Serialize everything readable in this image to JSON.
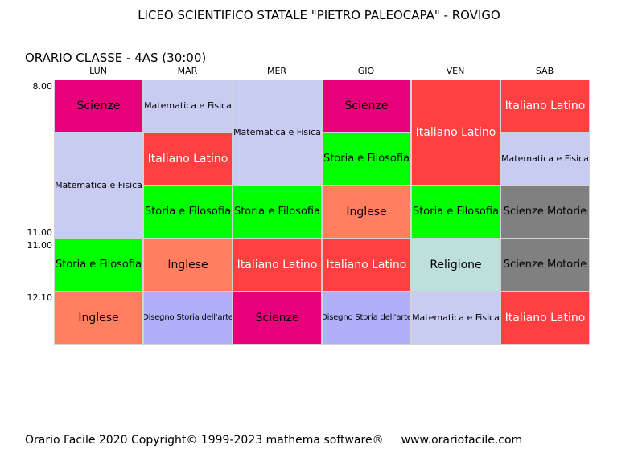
{
  "title": "LICEO SCIENTIFICO STATALE \"PIETRO PALEOCAPA\" - ROVIGO",
  "class_line": "ORARIO CLASSE   -   4AS  (30:00)",
  "days": [
    "LUN",
    "MAR",
    "MER",
    "GIO",
    "VEN",
    "SAB"
  ],
  "times": [
    "8.00",
    "11.00",
    "11.00",
    "12.10"
  ],
  "colors": {
    "scienze": "#e8007a",
    "matematica": "#c8ccf2",
    "italiano": "#ff4040",
    "storia": "#00ff00",
    "inglese": "#ff7f60",
    "religione": "#bde0dc",
    "motorie": "#808080",
    "disegno": "#b0b0f8"
  },
  "cells": [
    {
      "day": 0,
      "start": 0,
      "span": 1,
      "label": "Scienze",
      "color": "#e8007a",
      "text_color": "#000000",
      "size": "lg"
    },
    {
      "day": 0,
      "start": 1,
      "span": 2,
      "label": "Matematica e Fisica",
      "color": "#c8ccf2",
      "text_color": "#000000",
      "size": "sm"
    },
    {
      "day": 0,
      "start": 3,
      "span": 1,
      "label": "Storia e Filosofia",
      "color": "#00ff00",
      "text_color": "#000000",
      "size": "md"
    },
    {
      "day": 0,
      "start": 4,
      "span": 1,
      "label": "Inglese",
      "color": "#ff7f60",
      "text_color": "#000000",
      "size": "lg"
    },
    {
      "day": 1,
      "start": 0,
      "span": 1,
      "label": "Matematica e Fisica",
      "color": "#c8ccf2",
      "text_color": "#000000",
      "size": "sm"
    },
    {
      "day": 1,
      "start": 1,
      "span": 1,
      "label": "Italiano Latino",
      "color": "#ff4040",
      "text_color": "#ffffff",
      "size": "lg"
    },
    {
      "day": 1,
      "start": 2,
      "span": 1,
      "label": "Storia e Filosofia",
      "color": "#00ff00",
      "text_color": "#000000",
      "size": "md"
    },
    {
      "day": 1,
      "start": 3,
      "span": 1,
      "label": "Inglese",
      "color": "#ff7f60",
      "text_color": "#000000",
      "size": "lg"
    },
    {
      "day": 1,
      "start": 4,
      "span": 1,
      "label": "Disegno Storia dell'arte",
      "color": "#b0b0f8",
      "text_color": "#000000",
      "size": "xs"
    },
    {
      "day": 2,
      "start": 0,
      "span": 2,
      "label": "Matematica e Fisica",
      "color": "#c8ccf2",
      "text_color": "#000000",
      "size": "sm"
    },
    {
      "day": 2,
      "start": 2,
      "span": 1,
      "label": "Storia e Filosofia",
      "color": "#00ff00",
      "text_color": "#000000",
      "size": "md"
    },
    {
      "day": 2,
      "start": 3,
      "span": 1,
      "label": "Italiano Latino",
      "color": "#ff4040",
      "text_color": "#ffffff",
      "size": "lg"
    },
    {
      "day": 2,
      "start": 4,
      "span": 1,
      "label": "Scienze",
      "color": "#e8007a",
      "text_color": "#000000",
      "size": "lg"
    },
    {
      "day": 3,
      "start": 0,
      "span": 1,
      "label": "Scienze",
      "color": "#e8007a",
      "text_color": "#000000",
      "size": "lg"
    },
    {
      "day": 3,
      "start": 1,
      "span": 1,
      "label": "Storia e Filosofia",
      "color": "#00ff00",
      "text_color": "#000000",
      "size": "md"
    },
    {
      "day": 3,
      "start": 2,
      "span": 1,
      "label": "Inglese",
      "color": "#ff7f60",
      "text_color": "#000000",
      "size": "lg"
    },
    {
      "day": 3,
      "start": 3,
      "span": 1,
      "label": "Italiano Latino",
      "color": "#ff4040",
      "text_color": "#ffffff",
      "size": "lg"
    },
    {
      "day": 3,
      "start": 4,
      "span": 1,
      "label": "Disegno Storia dell'arte",
      "color": "#b0b0f8",
      "text_color": "#000000",
      "size": "xs"
    },
    {
      "day": 4,
      "start": 0,
      "span": 2,
      "label": "Italiano Latino",
      "color": "#ff4040",
      "text_color": "#ffffff",
      "size": "lg"
    },
    {
      "day": 4,
      "start": 2,
      "span": 1,
      "label": "Storia e Filosofia",
      "color": "#00ff00",
      "text_color": "#000000",
      "size": "md"
    },
    {
      "day": 4,
      "start": 3,
      "span": 1,
      "label": "Religione",
      "color": "#bde0dc",
      "text_color": "#000000",
      "size": "lg"
    },
    {
      "day": 4,
      "start": 4,
      "span": 1,
      "label": "Matematica e Fisica",
      "color": "#c8ccf2",
      "text_color": "#000000",
      "size": "sm"
    },
    {
      "day": 5,
      "start": 0,
      "span": 1,
      "label": "Italiano Latino",
      "color": "#ff4040",
      "text_color": "#ffffff",
      "size": "lg"
    },
    {
      "day": 5,
      "start": 1,
      "span": 1,
      "label": "Matematica e Fisica",
      "color": "#c8ccf2",
      "text_color": "#000000",
      "size": "sm"
    },
    {
      "day": 5,
      "start": 2,
      "span": 1,
      "label": "Scienze  Motorie",
      "color": "#808080",
      "text_color": "#000000",
      "size": "md"
    },
    {
      "day": 5,
      "start": 3,
      "span": 1,
      "label": "Scienze  Motorie",
      "color": "#808080",
      "text_color": "#000000",
      "size": "md"
    },
    {
      "day": 5,
      "start": 4,
      "span": 1,
      "label": "Italiano Latino",
      "color": "#ff4040",
      "text_color": "#ffffff",
      "size": "lg"
    }
  ],
  "footer": {
    "copyright": "Orario Facile 2020  Copyright© 1999-2023 mathema software®",
    "url": "www.orariofacile.com"
  }
}
